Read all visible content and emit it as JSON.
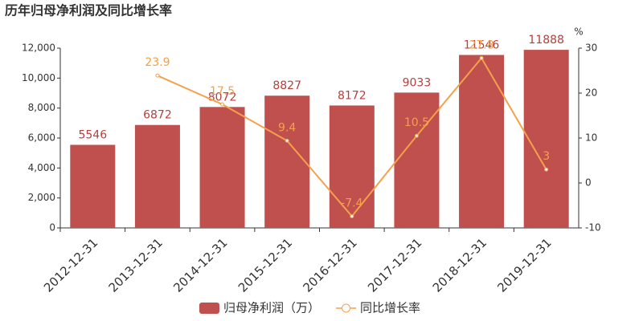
{
  "chart_data": {
    "type": "bar",
    "title": "历年归母净利润及同比增长率",
    "categories": [
      "2012-12-31",
      "2013-12-31",
      "2014-12-31",
      "2015-12-31",
      "2016-12-31",
      "2017-12-31",
      "2018-12-31",
      "2019-12-31"
    ],
    "series": [
      {
        "name": "归母净利润（万）",
        "color": "#c0504d",
        "values": [
          5546,
          6872,
          8072,
          8827,
          8172,
          9033,
          11546,
          11888
        ]
      },
      {
        "name": "同比增长率",
        "color": "#f5a04a",
        "type": "line",
        "axis": "y2",
        "values": [
          null,
          23.9,
          17.5,
          9.4,
          -7.4,
          10.5,
          27.8,
          3
        ]
      }
    ],
    "ylim": [
      0,
      12000
    ],
    "yticks": [
      0,
      {
        "value": 2000,
        "label": "2,000"
      },
      {
        "value": 4000,
        "label": "4,000"
      },
      {
        "value": 6000,
        "label": "6,000"
      },
      {
        "value": 8000,
        "label": "8,000"
      },
      {
        "value": 10000,
        "label": "10,000"
      },
      {
        "value": 12000,
        "label": "12,000"
      }
    ],
    "y2label": "%",
    "y2lim": [
      -10,
      30
    ],
    "y2ticks": [
      -10,
      0,
      10,
      20,
      30
    ],
    "legend": "bottom"
  }
}
